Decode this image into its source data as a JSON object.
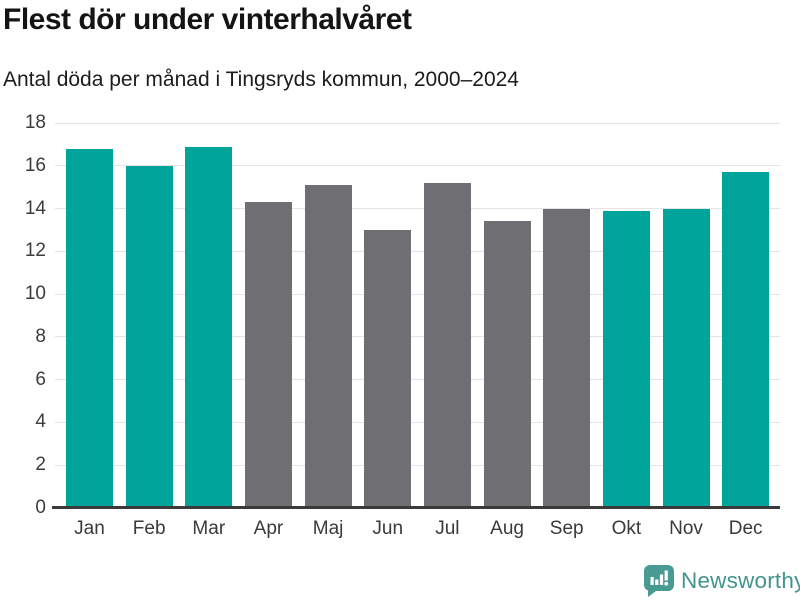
{
  "title": "Flest dör under vinterhalvåret",
  "subtitle": "Antal döda per månad i Tingsryds kommun, 2000–2024",
  "footer": {
    "brand": "Newsworthy",
    "brand_color": "#44948E",
    "icon": "newsworthy-bar-chart-bubble-icon",
    "icon_color": "#4A9A94"
  },
  "colors": {
    "highlight": "#00A49B",
    "muted": "#6E6E73",
    "gridline": "#E4E4E4",
    "axis": "#3A3A3A",
    "tick_label": "#3C3C3C"
  },
  "chart_data": {
    "type": "bar",
    "title": "Flest dör under vinterhalvåret",
    "subtitle": "Antal döda per månad i Tingsryds kommun, 2000–2024",
    "categories": [
      "Jan",
      "Feb",
      "Mar",
      "Apr",
      "Maj",
      "Jun",
      "Jul",
      "Aug",
      "Sep",
      "Okt",
      "Nov",
      "Dec"
    ],
    "values": [
      16.8,
      16.0,
      16.9,
      14.3,
      15.1,
      13.0,
      15.2,
      13.4,
      14.0,
      13.9,
      14.0,
      15.7
    ],
    "bar_colors": [
      "highlight",
      "highlight",
      "highlight",
      "muted",
      "muted",
      "muted",
      "muted",
      "muted",
      "muted",
      "highlight",
      "highlight",
      "highlight"
    ],
    "xlabel": "",
    "ylabel": "",
    "ylim": [
      0,
      18
    ],
    "yticks": [
      0,
      2,
      4,
      6,
      8,
      10,
      12,
      14,
      16,
      18
    ],
    "grid": true,
    "legend": false
  }
}
